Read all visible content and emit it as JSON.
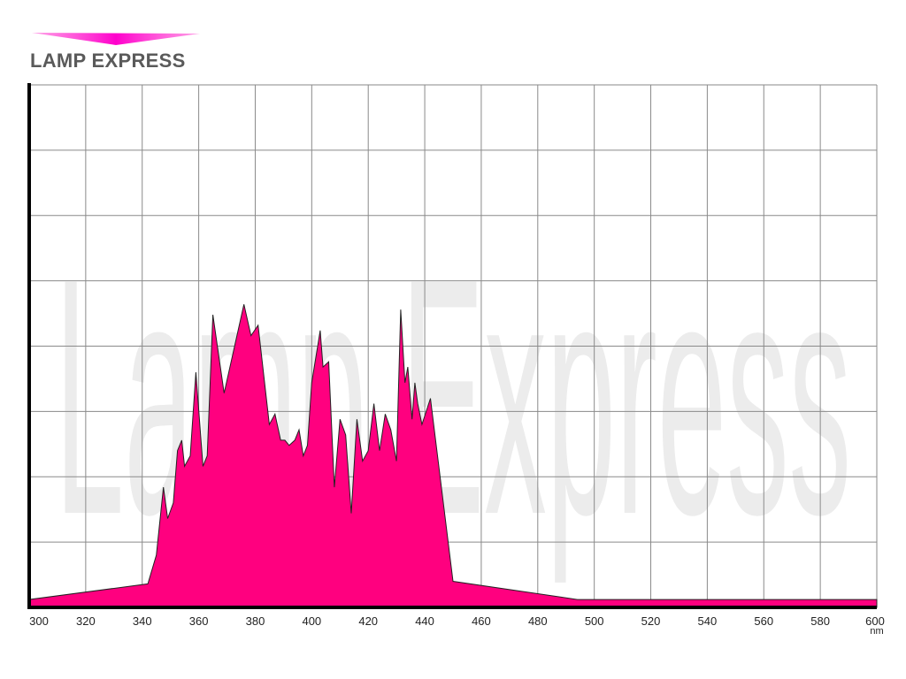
{
  "brand": {
    "title": "LAMP EXPRESS",
    "watermark": "Lamp Express",
    "accent": "#ff007f"
  },
  "chart_data": {
    "type": "area",
    "title": "",
    "xlabel": "nm",
    "ylabel": "",
    "xlim": [
      300,
      600
    ],
    "ylim": [
      0,
      100
    ],
    "grid": true,
    "fill_color": "#ff007f",
    "xticks": [
      300,
      320,
      340,
      360,
      380,
      400,
      420,
      440,
      460,
      480,
      500,
      520,
      540,
      560,
      580,
      600
    ],
    "x": [
      300,
      342,
      345,
      347.5,
      349,
      351,
      352.5,
      354,
      355,
      357,
      359,
      361.5,
      363,
      365,
      369,
      376,
      378.5,
      381,
      385,
      387,
      389,
      390.5,
      392,
      394,
      395.5,
      397,
      398.5,
      400,
      403,
      404,
      406,
      408,
      410,
      412,
      414,
      416,
      418,
      420,
      422,
      424,
      426,
      428,
      430,
      431.5,
      433,
      434,
      435.5,
      436.5,
      437.5,
      439,
      442,
      450,
      494,
      600
    ],
    "series": [
      {
        "values": [
          1.5,
          4.5,
          10,
          23,
          17,
          20,
          30,
          32,
          27,
          29,
          45,
          27,
          29,
          56,
          41,
          58,
          52,
          54,
          35,
          37,
          32,
          32,
          31,
          32,
          34,
          29,
          31,
          43,
          53,
          46,
          47,
          23,
          36,
          33,
          18,
          36,
          28,
          30,
          39,
          30,
          37,
          34,
          28,
          57,
          43,
          46,
          36,
          43,
          39,
          35,
          40,
          5,
          1.5,
          1.5
        ]
      }
    ]
  }
}
